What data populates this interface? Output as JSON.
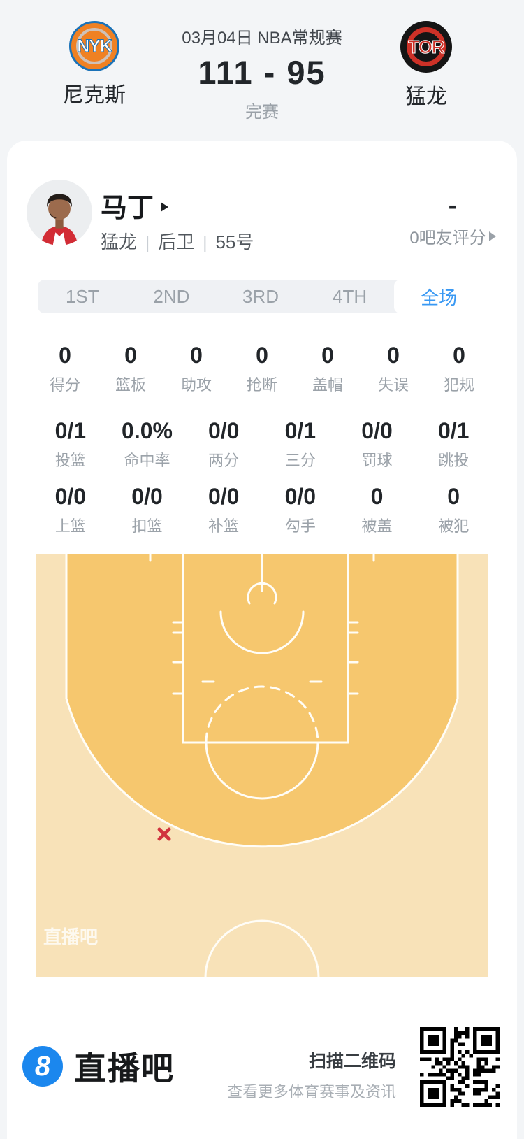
{
  "header": {
    "date_title": "03月04日 NBA常规赛",
    "score": "111 - 95",
    "status": "完赛",
    "home_team": {
      "abbr": "NYK",
      "name": "尼克斯"
    },
    "away_team": {
      "abbr": "TOR",
      "name": "猛龙"
    }
  },
  "player": {
    "name": "马丁",
    "team": "猛龙",
    "position": "后卫",
    "number": "55号",
    "separator": "|",
    "rating_value": "-",
    "rating_label": "0吧友评分"
  },
  "tabs": [
    {
      "label": "1ST",
      "active": false
    },
    {
      "label": "2ND",
      "active": false
    },
    {
      "label": "3RD",
      "active": false
    },
    {
      "label": "4TH",
      "active": false
    },
    {
      "label": "全场",
      "active": true
    }
  ],
  "stats": {
    "row1": [
      {
        "value": "0",
        "label": "得分"
      },
      {
        "value": "0",
        "label": "篮板"
      },
      {
        "value": "0",
        "label": "助攻"
      },
      {
        "value": "0",
        "label": "抢断"
      },
      {
        "value": "0",
        "label": "盖帽"
      },
      {
        "value": "0",
        "label": "失误"
      },
      {
        "value": "0",
        "label": "犯规"
      }
    ],
    "row2": [
      {
        "value": "0/1",
        "label": "投篮"
      },
      {
        "value": "0.0%",
        "label": "命中率"
      },
      {
        "value": "0/0",
        "label": "两分"
      },
      {
        "value": "0/1",
        "label": "三分"
      },
      {
        "value": "0/0",
        "label": "罚球"
      },
      {
        "value": "0/1",
        "label": "跳投"
      }
    ],
    "row3": [
      {
        "value": "0/0",
        "label": "上篮"
      },
      {
        "value": "0/0",
        "label": "扣篮"
      },
      {
        "value": "0/0",
        "label": "补篮"
      },
      {
        "value": "0/0",
        "label": "勾手"
      },
      {
        "value": "0",
        "label": "被盖"
      },
      {
        "value": "0",
        "label": "被犯"
      }
    ]
  },
  "court": {
    "watermark": "直播吧",
    "shot_markers": [
      {
        "type": "miss",
        "symbol": "×",
        "area": "left-wing-beyond-3pt"
      }
    ],
    "colors": {
      "inside_arc": "#f6c76e",
      "outside_arc": "#f8e2b8",
      "lines": "#fffdf7",
      "miss_marker": "#d1333e"
    }
  },
  "footer": {
    "logo_badge": "8",
    "logo_text": "直播吧",
    "qr_title": "扫描二维码",
    "qr_subtitle": "查看更多体育赛事及资讯"
  },
  "colors": {
    "accent_blue": "#3898f3",
    "score_text": "#22262a",
    "muted": "#9aa1a8"
  }
}
